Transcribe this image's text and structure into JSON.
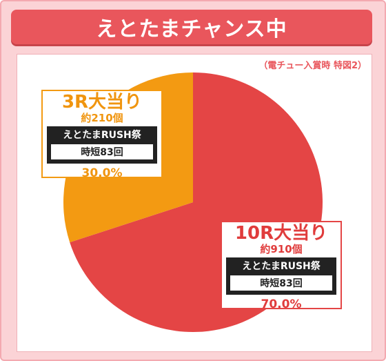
{
  "header": {
    "title": "えとたまチャンス中"
  },
  "note": "（電チュー入賞時 特図2）",
  "chart_data": {
    "type": "pie",
    "title": "えとたまチャンス中",
    "subtitle": "（電チュー入賞時 特図2）",
    "slices": [
      {
        "label": "10R大当り",
        "payout": "約910個",
        "mode": "えとたまRUSH祭",
        "jitan": "時短83回",
        "value": 70.0,
        "value_label": "70.0%",
        "color": "#e44545"
      },
      {
        "label": "3R大当り",
        "payout": "約210個",
        "mode": "えとたまRUSH祭",
        "jitan": "時短83回",
        "value": 30.0,
        "value_label": "30.0%",
        "color": "#f39a12"
      }
    ],
    "start_angle_deg": 0,
    "direction": "clockwise"
  }
}
